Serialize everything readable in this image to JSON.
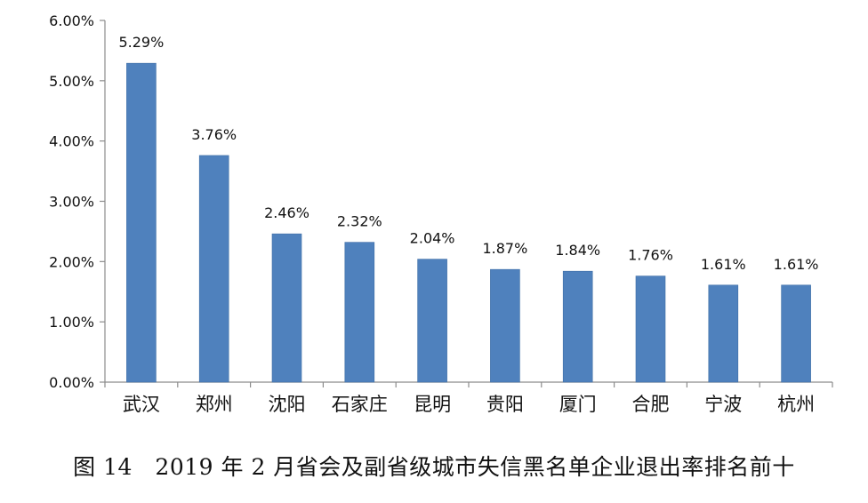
{
  "caption": "图 14　2019 年 2 月省会及副省级城市失信黑名单企业退出率排名前十",
  "chart_data": {
    "type": "bar",
    "categories": [
      "武汉",
      "郑州",
      "沈阳",
      "石家庄",
      "昆明",
      "贵阳",
      "厦门",
      "合肥",
      "宁波",
      "杭州"
    ],
    "values": [
      5.29,
      3.76,
      2.46,
      2.32,
      2.04,
      1.87,
      1.84,
      1.76,
      1.61,
      1.61
    ],
    "data_labels": [
      "5.29%",
      "3.76%",
      "2.46%",
      "2.32%",
      "2.04%",
      "1.87%",
      "1.84%",
      "1.76%",
      "1.61%",
      "1.61%"
    ],
    "y_ticks": [
      0,
      1,
      2,
      3,
      4,
      5,
      6
    ],
    "y_tick_labels": [
      "0.00%",
      "1.00%",
      "2.00%",
      "3.00%",
      "4.00%",
      "5.00%",
      "6.00%"
    ],
    "ylim": [
      0,
      6
    ],
    "grid": false,
    "legend": "none",
    "bar_color": "#4f81bd",
    "axis_color": "#8c8c8c"
  }
}
